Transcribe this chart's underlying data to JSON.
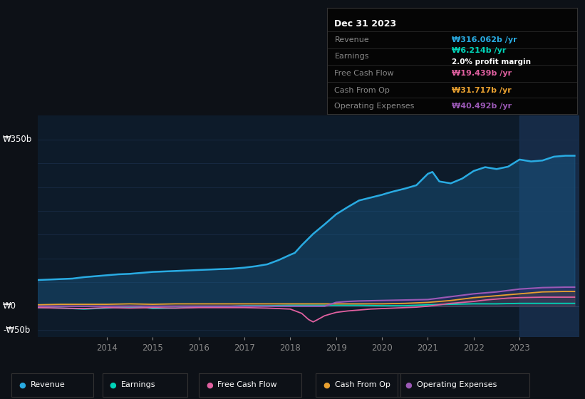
{
  "bg_color": "#0d1117",
  "plot_bg_color": "#0d1b2a",
  "grid_color": "#1a2e4a",
  "ylabel_350": "₩350b",
  "ylabel_0": "₩0",
  "ylabel_neg50": "-₩50b",
  "ylim": [
    -65,
    400
  ],
  "xlim": [
    2012.5,
    2024.3
  ],
  "info_box": {
    "date": "Dec 31 2023",
    "revenue_label": "Revenue",
    "revenue_value": "₩316.062b /yr",
    "revenue_color": "#29abe2",
    "earnings_label": "Earnings",
    "earnings_value": "₩6.214b /yr",
    "earnings_color": "#00d4b8",
    "profit_margin": "2.0% profit margin",
    "fcf_label": "Free Cash Flow",
    "fcf_value": "₩19.439b /yr",
    "fcf_color": "#e060a0",
    "cashop_label": "Cash From Op",
    "cashop_value": "₩31.717b /yr",
    "cashop_color": "#e8a030",
    "opex_label": "Operating Expenses",
    "opex_value": "₩40.492b /yr",
    "opex_color": "#9b59b6"
  },
  "legend": [
    {
      "label": "Revenue",
      "color": "#29abe2"
    },
    {
      "label": "Earnings",
      "color": "#00d4b8"
    },
    {
      "label": "Free Cash Flow",
      "color": "#e060a0"
    },
    {
      "label": "Cash From Op",
      "color": "#e8a030"
    },
    {
      "label": "Operating Expenses",
      "color": "#9b59b6"
    }
  ],
  "revenue_x": [
    2012.5,
    2013.0,
    2013.25,
    2013.5,
    2013.75,
    2014.0,
    2014.25,
    2014.5,
    2014.75,
    2015.0,
    2015.25,
    2015.5,
    2015.75,
    2016.0,
    2016.25,
    2016.5,
    2016.75,
    2017.0,
    2017.25,
    2017.5,
    2017.75,
    2018.0,
    2018.1,
    2018.25,
    2018.5,
    2018.75,
    2019.0,
    2019.25,
    2019.5,
    2019.75,
    2020.0,
    2020.1,
    2020.25,
    2020.5,
    2020.75,
    2021.0,
    2021.1,
    2021.25,
    2021.5,
    2021.75,
    2022.0,
    2022.25,
    2022.5,
    2022.75,
    2023.0,
    2023.25,
    2023.5,
    2023.75,
    2024.0,
    2024.2
  ],
  "revenue_y": [
    55,
    57,
    58,
    61,
    63,
    65,
    67,
    68,
    70,
    72,
    73,
    74,
    75,
    76,
    77,
    78,
    79,
    81,
    84,
    88,
    97,
    108,
    112,
    128,
    152,
    172,
    193,
    208,
    222,
    228,
    234,
    237,
    241,
    247,
    254,
    278,
    282,
    262,
    258,
    268,
    284,
    292,
    288,
    293,
    308,
    304,
    306,
    314,
    316,
    316
  ],
  "earnings_x": [
    2012.5,
    2013.0,
    2013.25,
    2013.5,
    2013.75,
    2014.0,
    2014.25,
    2014.5,
    2014.75,
    2015.0,
    2015.5,
    2016.0,
    2016.5,
    2017.0,
    2017.5,
    2018.0,
    2018.5,
    2019.0,
    2019.5,
    2020.0,
    2020.5,
    2021.0,
    2021.5,
    2022.0,
    2022.5,
    2023.0,
    2023.5,
    2024.0,
    2024.2
  ],
  "earnings_y": [
    -3,
    -4,
    -5,
    -6,
    -5,
    -4,
    -3,
    -3,
    -2,
    -5,
    -4,
    -2,
    -1,
    1,
    1,
    2,
    2,
    2,
    2,
    1,
    1,
    3,
    4,
    5,
    5,
    6,
    6,
    6,
    6
  ],
  "fcf_x": [
    2012.5,
    2013.0,
    2013.5,
    2014.0,
    2014.5,
    2015.0,
    2015.5,
    2016.0,
    2016.5,
    2017.0,
    2017.5,
    2017.75,
    2018.0,
    2018.25,
    2018.4,
    2018.5,
    2018.6,
    2018.75,
    2019.0,
    2019.25,
    2019.5,
    2019.75,
    2020.0,
    2020.25,
    2020.5,
    2020.75,
    2021.0,
    2021.25,
    2021.5,
    2022.0,
    2022.25,
    2022.5,
    2022.75,
    2023.0,
    2023.5,
    2024.0,
    2024.2
  ],
  "fcf_y": [
    -3,
    -4,
    -5,
    -3,
    -4,
    -3,
    -4,
    -3,
    -3,
    -3,
    -4,
    -5,
    -6,
    -15,
    -28,
    -33,
    -28,
    -20,
    -13,
    -10,
    -8,
    -6,
    -5,
    -4,
    -3,
    -2,
    0,
    3,
    6,
    10,
    13,
    15,
    17,
    18,
    19,
    19,
    19
  ],
  "cashop_x": [
    2012.5,
    2013.0,
    2013.5,
    2014.0,
    2014.5,
    2015.0,
    2015.5,
    2016.0,
    2016.5,
    2017.0,
    2017.5,
    2018.0,
    2018.5,
    2019.0,
    2019.5,
    2020.0,
    2020.5,
    2021.0,
    2021.5,
    2022.0,
    2022.5,
    2023.0,
    2023.5,
    2024.0,
    2024.2
  ],
  "cashop_y": [
    3,
    4,
    4,
    4,
    5,
    4,
    5,
    5,
    5,
    5,
    5,
    5,
    5,
    5,
    5,
    5,
    6,
    8,
    12,
    18,
    22,
    26,
    30,
    31,
    31
  ],
  "opex_x": [
    2012.5,
    2013.0,
    2013.5,
    2014.0,
    2014.5,
    2015.0,
    2015.5,
    2016.0,
    2016.5,
    2017.0,
    2017.5,
    2018.0,
    2018.5,
    2018.75,
    2019.0,
    2019.25,
    2019.5,
    2020.0,
    2020.5,
    2021.0,
    2021.5,
    2022.0,
    2022.5,
    2023.0,
    2023.5,
    2024.0,
    2024.2
  ],
  "opex_y": [
    0,
    0,
    0,
    0,
    0,
    0,
    0,
    0,
    0,
    0,
    0,
    0,
    0,
    0,
    8,
    10,
    11,
    12,
    13,
    14,
    20,
    26,
    30,
    36,
    39,
    40,
    40
  ]
}
